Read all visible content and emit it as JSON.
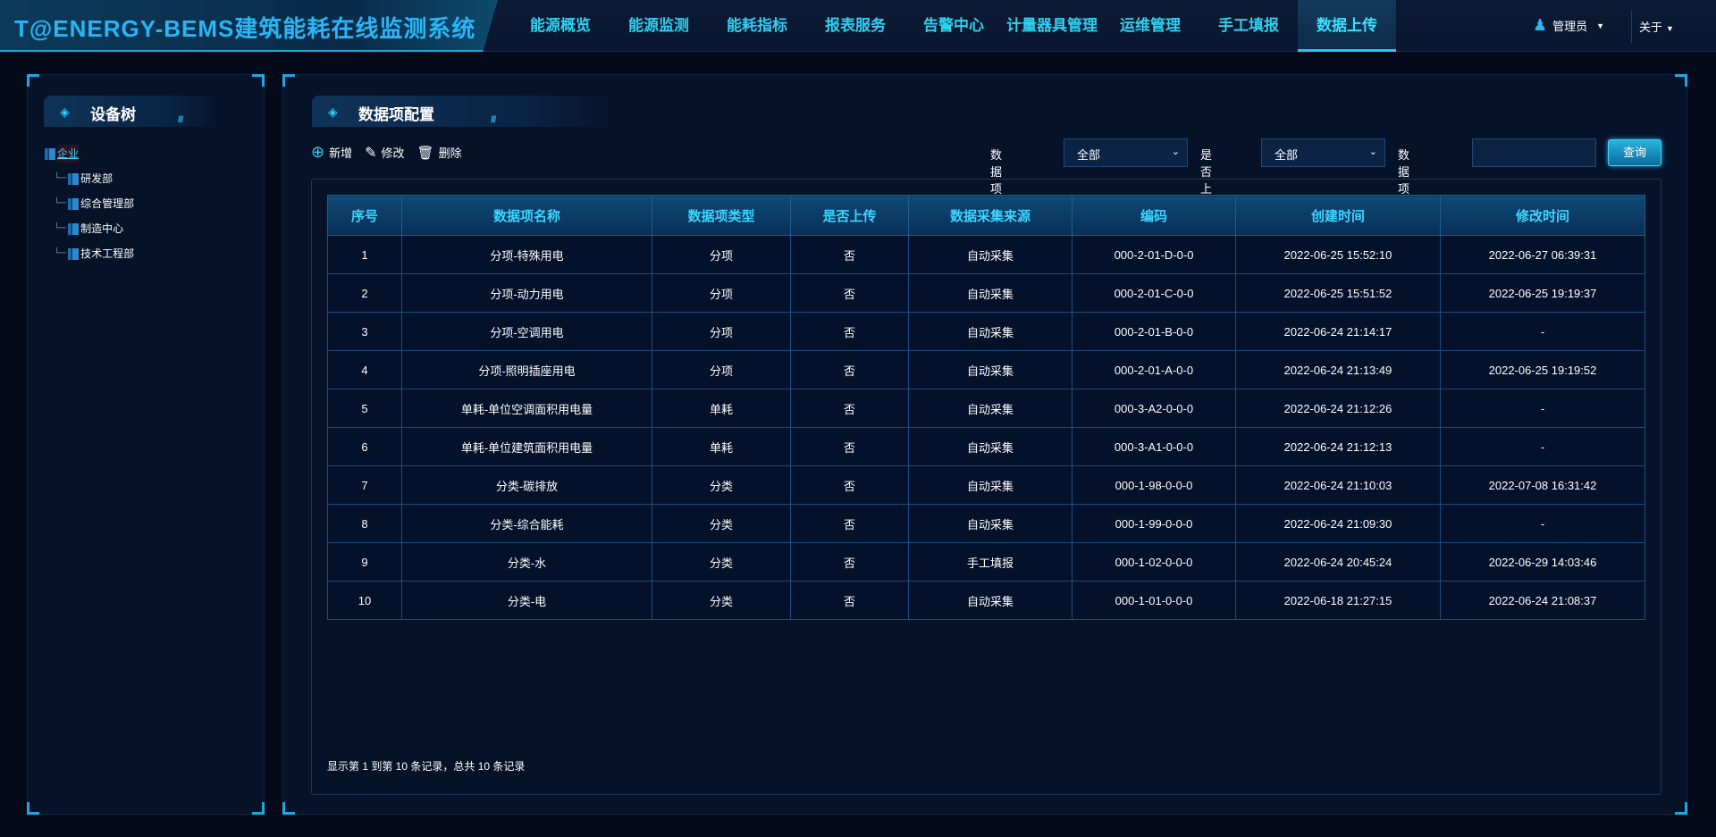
{
  "header": {
    "logo": "T@ENERGY-BEMS建筑能耗在线监测系统",
    "nav": [
      "能源概览",
      "能源监测",
      "能耗指标",
      "报表服务",
      "告警中心",
      "计量器具管理",
      "运维管理",
      "手工填报",
      "数据上传"
    ],
    "active_nav": "数据上传",
    "user": "管理员",
    "about": "关于"
  },
  "sidebar": {
    "title": "设备树",
    "tree": {
      "root": "企业",
      "children": [
        "研发部",
        "综合管理部",
        "制造中心",
        "技术工程部"
      ]
    }
  },
  "main": {
    "title": "数据项配置",
    "toolbar": {
      "add": "新增",
      "edit": "修改",
      "delete": "删除"
    },
    "filters": {
      "type_label": "数据项类型",
      "type_value": "全部",
      "upload_label": "是否上传",
      "upload_value": "全部",
      "name_label": "数据项名称",
      "name_value": "",
      "query": "查询"
    },
    "table": {
      "columns": [
        "序号",
        "数据项名称",
        "数据项类型",
        "是否上传",
        "数据采集来源",
        "编码",
        "创建时间",
        "修改时间"
      ],
      "rows": [
        [
          "1",
          "分项-特殊用电",
          "分项",
          "否",
          "自动采集",
          "000-2-01-D-0-0",
          "2022-06-25 15:52:10",
          "2022-06-27 06:39:31"
        ],
        [
          "2",
          "分项-动力用电",
          "分项",
          "否",
          "自动采集",
          "000-2-01-C-0-0",
          "2022-06-25 15:51:52",
          "2022-06-25 19:19:37"
        ],
        [
          "3",
          "分项-空调用电",
          "分项",
          "否",
          "自动采集",
          "000-2-01-B-0-0",
          "2022-06-24 21:14:17",
          "-"
        ],
        [
          "4",
          "分项-照明插座用电",
          "分项",
          "否",
          "自动采集",
          "000-2-01-A-0-0",
          "2022-06-24 21:13:49",
          "2022-06-25 19:19:52"
        ],
        [
          "5",
          "单耗-单位空调面积用电量",
          "单耗",
          "否",
          "自动采集",
          "000-3-A2-0-0-0",
          "2022-06-24 21:12:26",
          "-"
        ],
        [
          "6",
          "单耗-单位建筑面积用电量",
          "单耗",
          "否",
          "自动采集",
          "000-3-A1-0-0-0",
          "2022-06-24 21:12:13",
          "-"
        ],
        [
          "7",
          "分类-碳排放",
          "分类",
          "否",
          "自动采集",
          "000-1-98-0-0-0",
          "2022-06-24 21:10:03",
          "2022-07-08 16:31:42"
        ],
        [
          "8",
          "分类-综合能耗",
          "分类",
          "否",
          "自动采集",
          "000-1-99-0-0-0",
          "2022-06-24 21:09:30",
          "-"
        ],
        [
          "9",
          "分类-水",
          "分类",
          "否",
          "手工填报",
          "000-1-02-0-0-0",
          "2022-06-24 20:45:24",
          "2022-06-29 14:03:46"
        ],
        [
          "10",
          "分类-电",
          "分类",
          "否",
          "自动采集",
          "000-1-01-0-0-0",
          "2022-06-18 21:27:15",
          "2022-06-24 21:08:37"
        ]
      ]
    },
    "footer": "显示第 1 到第 10 条记录，总共 10 条记录"
  }
}
